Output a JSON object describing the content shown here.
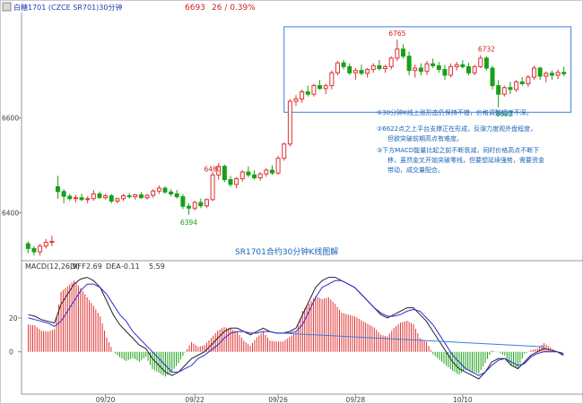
{
  "header": {
    "symbol_label": "白糖1701 (CZCE SR701)30分钟",
    "last_price": "6693",
    "change": "26 / 0.39%"
  },
  "annotations": {
    "notes": [
      "①30分钟K线上涨形态仍保持不错，价格调整幅度不深。",
      "②6622点之上平台支撑正在形成，反弹力度观外盘程度，",
      "但欲突破前期高点有难度。",
      "③下方MACD能量比起之前不断衰减，同时价格高点不断下",
      "移，虽然金叉开始突破零线，但要想延续强势，需要资金",
      "带动，成交量配合。"
    ],
    "caption": "SR1701合约30分钟K线图解"
  },
  "macd": {
    "label": "MACD(12,26,9)",
    "diff_label": "DIFF",
    "diff_value": "2.69",
    "dea_label": "DEA",
    "dea_value": "-0.11",
    "macd_value": "5.59"
  },
  "colors": {
    "up": "#e03030",
    "down": "#18a018",
    "diff_line": "#222222",
    "dea_line": "#2a2ad8",
    "box": "#3a7fe0",
    "trend": "#3a7fe0",
    "axis_text": "#404040",
    "note_text": "#1a63b8",
    "price_red": "#d02020"
  },
  "chart_data": [
    {
      "type": "candlestick",
      "title": "SR1701合约30分钟K线图解",
      "y_ticks": [
        6400,
        6600
      ],
      "ylim": [
        6305,
        6822
      ],
      "x_ticks": [
        "09/20",
        "09/22",
        "09/26",
        "09/28",
        "10/10"
      ],
      "price_labels": [
        {
          "label": "6480",
          "value": 6480
        },
        {
          "label": "6394",
          "value": 6394
        },
        {
          "label": "6765",
          "value": 6765
        },
        {
          "label": "6732",
          "value": 6732
        },
        {
          "label": "6622",
          "value": 6622
        }
      ],
      "ohlc_approx": [
        [
          6335,
          6340,
          6315,
          6325
        ],
        [
          6325,
          6330,
          6310,
          6318
        ],
        [
          6318,
          6335,
          6310,
          6330
        ],
        [
          6330,
          6345,
          6325,
          6338
        ],
        [
          6338,
          6352,
          6330,
          6340
        ],
        [
          6455,
          6478,
          6430,
          6445
        ],
        [
          6445,
          6450,
          6420,
          6435
        ],
        [
          6435,
          6440,
          6425,
          6430
        ],
        [
          6430,
          6438,
          6422,
          6432
        ],
        [
          6432,
          6440,
          6425,
          6428
        ],
        [
          6428,
          6435,
          6420,
          6430
        ],
        [
          6430,
          6448,
          6425,
          6440
        ],
        [
          6440,
          6445,
          6430,
          6432
        ],
        [
          6432,
          6440,
          6428,
          6436
        ],
        [
          6436,
          6440,
          6420,
          6425
        ],
        [
          6425,
          6432,
          6420,
          6430
        ],
        [
          6430,
          6440,
          6425,
          6436
        ],
        [
          6436,
          6442,
          6430,
          6434
        ],
        [
          6434,
          6440,
          6428,
          6438
        ],
        [
          6438,
          6444,
          6430,
          6432
        ],
        [
          6432,
          6440,
          6428,
          6437
        ],
        [
          6437,
          6450,
          6432,
          6446
        ],
        [
          6446,
          6458,
          6440,
          6452
        ],
        [
          6452,
          6456,
          6440,
          6444
        ],
        [
          6444,
          6450,
          6435,
          6440
        ],
        [
          6440,
          6448,
          6430,
          6434
        ],
        [
          6434,
          6440,
          6408,
          6414
        ],
        [
          6414,
          6420,
          6396,
          6410
        ],
        [
          6410,
          6426,
          6405,
          6422
        ],
        [
          6422,
          6430,
          6410,
          6415
        ],
        [
          6415,
          6430,
          6410,
          6428
        ],
        [
          6428,
          6486,
          6425,
          6480
        ],
        [
          6480,
          6505,
          6470,
          6498
        ],
        [
          6498,
          6502,
          6465,
          6470
        ],
        [
          6470,
          6478,
          6455,
          6460
        ],
        [
          6460,
          6476,
          6452,
          6472
        ],
        [
          6472,
          6490,
          6466,
          6486
        ],
        [
          6486,
          6498,
          6475,
          6480
        ],
        [
          6480,
          6490,
          6470,
          6474
        ],
        [
          6474,
          6486,
          6468,
          6482
        ],
        [
          6482,
          6494,
          6476,
          6490
        ],
        [
          6490,
          6500,
          6480,
          6484
        ],
        [
          6484,
          6520,
          6480,
          6515
        ],
        [
          6515,
          6548,
          6510,
          6545
        ],
        [
          6545,
          6640,
          6540,
          6635
        ],
        [
          6635,
          6648,
          6625,
          6640
        ],
        [
          6640,
          6660,
          6632,
          6655
        ],
        [
          6655,
          6668,
          6645,
          6650
        ],
        [
          6650,
          6672,
          6645,
          6668
        ],
        [
          6668,
          6680,
          6660,
          6662
        ],
        [
          6662,
          6672,
          6650,
          6668
        ],
        [
          6668,
          6700,
          6660,
          6695
        ],
        [
          6695,
          6720,
          6690,
          6716
        ],
        [
          6716,
          6722,
          6702,
          6708
        ],
        [
          6708,
          6715,
          6690,
          6695
        ],
        [
          6695,
          6705,
          6680,
          6700
        ],
        [
          6700,
          6712,
          6690,
          6694
        ],
        [
          6694,
          6705,
          6685,
          6702
        ],
        [
          6702,
          6715,
          6695,
          6710
        ],
        [
          6710,
          6722,
          6700,
          6704
        ],
        [
          6704,
          6712,
          6695,
          6708
        ],
        [
          6708,
          6730,
          6702,
          6726
        ],
        [
          6726,
          6765,
          6720,
          6745
        ],
        [
          6745,
          6755,
          6725,
          6730
        ],
        [
          6730,
          6740,
          6690,
          6700
        ],
        [
          6700,
          6712,
          6685,
          6705
        ],
        [
          6705,
          6715,
          6690,
          6698
        ],
        [
          6698,
          6720,
          6690,
          6714
        ],
        [
          6714,
          6725,
          6705,
          6710
        ],
        [
          6710,
          6718,
          6695,
          6702
        ],
        [
          6702,
          6712,
          6680,
          6690
        ],
        [
          6690,
          6715,
          6685,
          6708
        ],
        [
          6708,
          6718,
          6700,
          6712
        ],
        [
          6712,
          6722,
          6704,
          6708
        ],
        [
          6708,
          6716,
          6690,
          6695
        ],
        [
          6695,
          6712,
          6690,
          6708
        ],
        [
          6708,
          6732,
          6705,
          6726
        ],
        [
          6726,
          6730,
          6700,
          6705
        ],
        [
          6705,
          6710,
          6660,
          6668
        ],
        [
          6668,
          6680,
          6622,
          6650
        ],
        [
          6650,
          6668,
          6645,
          6664
        ],
        [
          6664,
          6676,
          6650,
          6660
        ],
        [
          6660,
          6680,
          6655,
          6676
        ],
        [
          6676,
          6686,
          6668,
          6672
        ],
        [
          6672,
          6690,
          6665,
          6686
        ],
        [
          6686,
          6710,
          6680,
          6705
        ],
        [
          6705,
          6708,
          6680,
          6688
        ],
        [
          6688,
          6698,
          6675,
          6694
        ],
        [
          6694,
          6700,
          6680,
          6690
        ],
        [
          6690,
          6702,
          6682,
          6696
        ],
        [
          6696,
          6708,
          6688,
          6693
        ]
      ]
    },
    {
      "type": "macd",
      "title": "MACD(12,26,9)",
      "y_ticks": [
        0,
        20
      ],
      "ylim": [
        -25,
        48
      ],
      "series": [
        {
          "name": "DIFF"
        },
        {
          "name": "DEA"
        }
      ],
      "diff_approx": [
        22,
        21,
        19,
        18,
        17,
        28,
        34,
        40,
        43,
        44,
        42,
        38,
        30,
        22,
        16,
        12,
        8,
        4,
        2,
        -4,
        -8,
        -12,
        -14,
        -12,
        -8,
        -4,
        -2,
        0,
        4,
        8,
        12,
        14,
        14,
        12,
        10,
        12,
        14,
        12,
        11,
        11,
        12,
        14,
        22,
        30,
        38,
        42,
        44,
        44,
        42,
        40,
        38,
        34,
        30,
        26,
        22,
        20,
        22,
        24,
        26,
        26,
        22,
        18,
        12,
        6,
        0,
        -6,
        -10,
        -12,
        -14,
        -16,
        -12,
        -6,
        -4,
        -4,
        -8,
        -10,
        -6,
        -2,
        0,
        2,
        1,
        0,
        -2
      ],
      "dea_approx": [
        20,
        19,
        18,
        17,
        15,
        18,
        24,
        30,
        36,
        40,
        40,
        38,
        34,
        28,
        22,
        18,
        12,
        8,
        4,
        0,
        -4,
        -8,
        -12,
        -12,
        -10,
        -8,
        -4,
        -2,
        1,
        4,
        8,
        11,
        12,
        12,
        11,
        11,
        12,
        12,
        11,
        11,
        11,
        12,
        16,
        24,
        32,
        38,
        40,
        42,
        42,
        40,
        38,
        34,
        30,
        26,
        23,
        21,
        21,
        22,
        24,
        25,
        24,
        20,
        16,
        10,
        4,
        -2,
        -6,
        -10,
        -12,
        -14,
        -12,
        -8,
        -5,
        -4,
        -6,
        -8,
        -7,
        -3,
        -1,
        0,
        0,
        0,
        -1
      ],
      "trend_line": {
        "from": "09/26",
        "to": "10/10"
      }
    }
  ]
}
